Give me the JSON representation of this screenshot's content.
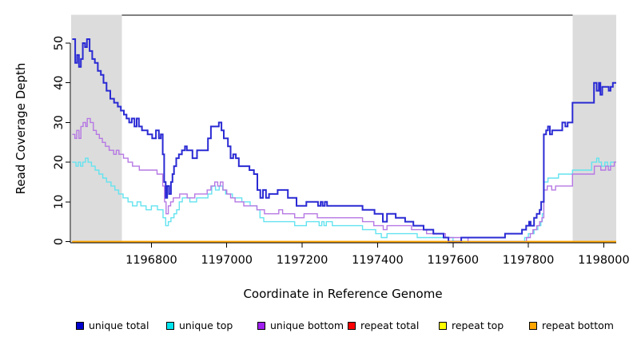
{
  "figure": {
    "background": "#FFFFFF",
    "shaded_region_color": "#DCDCDC",
    "axis_color": "#000000",
    "text_color": "#000000"
  },
  "chart_data": {
    "type": "line",
    "step_style": true,
    "title": "",
    "xlabel": "Coordinate in Reference Genome",
    "ylabel": "Read Coverage Depth",
    "grid": false,
    "legend_position": "bottom",
    "x_axis": {
      "min": 1196585,
      "max": 1198033,
      "ticks": [
        {
          "value": 1196800,
          "label": "1196800"
        },
        {
          "value": 1197000,
          "label": "1197000"
        },
        {
          "value": 1197200,
          "label": "1197200"
        },
        {
          "value": 1197400,
          "label": "1197400"
        },
        {
          "value": 1197600,
          "label": "1197600"
        },
        {
          "value": 1197800,
          "label": "1197800"
        },
        {
          "value": 1198000,
          "label": "1198000"
        }
      ]
    },
    "y_axis": {
      "min": 0,
      "max": 57,
      "ticks": [
        {
          "value": 0,
          "label": "0"
        },
        {
          "value": 10,
          "label": "10"
        },
        {
          "value": 20,
          "label": "20"
        },
        {
          "value": 30,
          "label": "30"
        },
        {
          "value": 40,
          "label": "40"
        },
        {
          "value": 50,
          "label": "50"
        }
      ]
    },
    "shaded_regions": [
      {
        "x0": 1196587,
        "x1": 1196722
      },
      {
        "x0": 1197917,
        "x1": 1198033
      }
    ],
    "draw_order": [
      "repeat total",
      "repeat top",
      "unique top",
      "unique bottom",
      "unique total",
      "repeat bottom"
    ],
    "series": [
      {
        "name": "unique total",
        "legend_color": "#0000CC",
        "stroke": "#2A2AD4",
        "width": 2,
        "points": [
          [
            1196590,
            51
          ],
          [
            1196598,
            45
          ],
          [
            1196603,
            47
          ],
          [
            1196608,
            44
          ],
          [
            1196613,
            46
          ],
          [
            1196618,
            50
          ],
          [
            1196624,
            49
          ],
          [
            1196629,
            51
          ],
          [
            1196636,
            48
          ],
          [
            1196643,
            46
          ],
          [
            1196650,
            45
          ],
          [
            1196658,
            43
          ],
          [
            1196666,
            42
          ],
          [
            1196673,
            40
          ],
          [
            1196681,
            38
          ],
          [
            1196691,
            36
          ],
          [
            1196701,
            35
          ],
          [
            1196711,
            34
          ],
          [
            1196719,
            33
          ],
          [
            1196727,
            32
          ],
          [
            1196734,
            31
          ],
          [
            1196741,
            30
          ],
          [
            1196748,
            31
          ],
          [
            1196755,
            29
          ],
          [
            1196761,
            31
          ],
          [
            1196767,
            29
          ],
          [
            1196775,
            28
          ],
          [
            1196790,
            27
          ],
          [
            1196802,
            26
          ],
          [
            1196812,
            28
          ],
          [
            1196820,
            26
          ],
          [
            1196825,
            27
          ],
          [
            1196830,
            22
          ],
          [
            1196834,
            15
          ],
          [
            1196838,
            11
          ],
          [
            1196842,
            14
          ],
          [
            1196847,
            12
          ],
          [
            1196852,
            15
          ],
          [
            1196856,
            17
          ],
          [
            1196860,
            19
          ],
          [
            1196866,
            21
          ],
          [
            1196873,
            22
          ],
          [
            1196881,
            23
          ],
          [
            1196889,
            24
          ],
          [
            1196894,
            23
          ],
          [
            1196909,
            21
          ],
          [
            1196921,
            23
          ],
          [
            1196950,
            26
          ],
          [
            1196958,
            29
          ],
          [
            1196979,
            30
          ],
          [
            1196986,
            28
          ],
          [
            1196992,
            26
          ],
          [
            1197003,
            24
          ],
          [
            1197010,
            21
          ],
          [
            1197017,
            22
          ],
          [
            1197024,
            21
          ],
          [
            1197032,
            19
          ],
          [
            1197060,
            18
          ],
          [
            1197072,
            17
          ],
          [
            1197081,
            13
          ],
          [
            1197089,
            11
          ],
          [
            1197096,
            13
          ],
          [
            1197104,
            11
          ],
          [
            1197112,
            12
          ],
          [
            1197135,
            13
          ],
          [
            1197162,
            11
          ],
          [
            1197185,
            9
          ],
          [
            1197211,
            10
          ],
          [
            1197242,
            9
          ],
          [
            1197249,
            10
          ],
          [
            1197254,
            9
          ],
          [
            1197260,
            10
          ],
          [
            1197266,
            9
          ],
          [
            1197360,
            8
          ],
          [
            1197392,
            7
          ],
          [
            1197414,
            5
          ],
          [
            1197425,
            7
          ],
          [
            1197448,
            6
          ],
          [
            1197473,
            5
          ],
          [
            1197495,
            4
          ],
          [
            1197522,
            3
          ],
          [
            1197548,
            2
          ],
          [
            1197575,
            1
          ],
          [
            1197588,
            0
          ],
          [
            1197622,
            1
          ],
          [
            1197738,
            2
          ],
          [
            1197783,
            3
          ],
          [
            1197794,
            4
          ],
          [
            1197802,
            5
          ],
          [
            1197806,
            4
          ],
          [
            1197815,
            6
          ],
          [
            1197822,
            7
          ],
          [
            1197830,
            8
          ],
          [
            1197834,
            10
          ],
          [
            1197841,
            27
          ],
          [
            1197847,
            28
          ],
          [
            1197852,
            29
          ],
          [
            1197857,
            27
          ],
          [
            1197863,
            28
          ],
          [
            1197890,
            30
          ],
          [
            1197898,
            29
          ],
          [
            1197904,
            30
          ],
          [
            1197917,
            35
          ],
          [
            1197974,
            40
          ],
          [
            1197981,
            38
          ],
          [
            1197987,
            40
          ],
          [
            1197991,
            37
          ],
          [
            1197996,
            39
          ],
          [
            1198013,
            38
          ],
          [
            1198018,
            39
          ],
          [
            1198024,
            40
          ],
          [
            1198033,
            40
          ]
        ]
      },
      {
        "name": "unique top",
        "legend_color": "#00E5EE",
        "stroke": "#63E3EF",
        "width": 1.4,
        "points": [
          [
            1196590,
            20
          ],
          [
            1196600,
            19
          ],
          [
            1196606,
            20
          ],
          [
            1196612,
            19
          ],
          [
            1196618,
            20
          ],
          [
            1196625,
            21
          ],
          [
            1196632,
            20
          ],
          [
            1196641,
            19
          ],
          [
            1196651,
            18
          ],
          [
            1196661,
            17
          ],
          [
            1196671,
            16
          ],
          [
            1196681,
            15
          ],
          [
            1196693,
            14
          ],
          [
            1196703,
            13
          ],
          [
            1196713,
            12
          ],
          [
            1196725,
            11
          ],
          [
            1196738,
            10
          ],
          [
            1196750,
            9
          ],
          [
            1196762,
            10
          ],
          [
            1196772,
            9
          ],
          [
            1196786,
            8
          ],
          [
            1196800,
            9
          ],
          [
            1196816,
            8
          ],
          [
            1196831,
            6
          ],
          [
            1196838,
            4
          ],
          [
            1196845,
            5
          ],
          [
            1196852,
            6
          ],
          [
            1196860,
            7
          ],
          [
            1196867,
            8
          ],
          [
            1196874,
            10
          ],
          [
            1196882,
            11
          ],
          [
            1196892,
            11
          ],
          [
            1196902,
            10
          ],
          [
            1196920,
            11
          ],
          [
            1196950,
            12
          ],
          [
            1196960,
            14
          ],
          [
            1196970,
            13
          ],
          [
            1196980,
            14
          ],
          [
            1196989,
            13
          ],
          [
            1196997,
            12
          ],
          [
            1197015,
            11
          ],
          [
            1197040,
            10
          ],
          [
            1197062,
            9
          ],
          [
            1197080,
            8
          ],
          [
            1197088,
            6
          ],
          [
            1197098,
            5
          ],
          [
            1197130,
            5
          ],
          [
            1197180,
            4
          ],
          [
            1197211,
            5
          ],
          [
            1197245,
            4
          ],
          [
            1197252,
            5
          ],
          [
            1197258,
            4
          ],
          [
            1197264,
            5
          ],
          [
            1197280,
            4
          ],
          [
            1197360,
            3
          ],
          [
            1197395,
            2
          ],
          [
            1197410,
            1
          ],
          [
            1197425,
            2
          ],
          [
            1197505,
            1
          ],
          [
            1197600,
            0
          ],
          [
            1197790,
            1
          ],
          [
            1197800,
            2
          ],
          [
            1197815,
            3
          ],
          [
            1197825,
            4
          ],
          [
            1197833,
            5
          ],
          [
            1197837,
            7
          ],
          [
            1197841,
            15
          ],
          [
            1197852,
            16
          ],
          [
            1197880,
            17
          ],
          [
            1197917,
            18
          ],
          [
            1197968,
            20
          ],
          [
            1197981,
            21
          ],
          [
            1197987,
            20
          ],
          [
            1197994,
            19
          ],
          [
            1198003,
            20
          ],
          [
            1198010,
            19
          ],
          [
            1198018,
            20
          ],
          [
            1198033,
            20
          ]
        ]
      },
      {
        "name": "unique bottom",
        "legend_color": "#A020F0",
        "stroke": "#B678E4",
        "width": 1.4,
        "points": [
          [
            1196590,
            27
          ],
          [
            1196597,
            26
          ],
          [
            1196602,
            28
          ],
          [
            1196608,
            26
          ],
          [
            1196613,
            29
          ],
          [
            1196619,
            30
          ],
          [
            1196626,
            29
          ],
          [
            1196630,
            31
          ],
          [
            1196638,
            30
          ],
          [
            1196646,
            28
          ],
          [
            1196654,
            27
          ],
          [
            1196662,
            26
          ],
          [
            1196670,
            25
          ],
          [
            1196678,
            24
          ],
          [
            1196688,
            23
          ],
          [
            1196700,
            22
          ],
          [
            1196707,
            23
          ],
          [
            1196714,
            22
          ],
          [
            1196726,
            21
          ],
          [
            1196738,
            20
          ],
          [
            1196750,
            19
          ],
          [
            1196768,
            18
          ],
          [
            1196790,
            18
          ],
          [
            1196815,
            17
          ],
          [
            1196830,
            14
          ],
          [
            1196835,
            10
          ],
          [
            1196839,
            7
          ],
          [
            1196845,
            9
          ],
          [
            1196851,
            10
          ],
          [
            1196858,
            11
          ],
          [
            1196875,
            12
          ],
          [
            1196895,
            11
          ],
          [
            1196915,
            12
          ],
          [
            1196948,
            13
          ],
          [
            1196958,
            14
          ],
          [
            1196968,
            15
          ],
          [
            1196976,
            14
          ],
          [
            1196983,
            15
          ],
          [
            1196990,
            13
          ],
          [
            1197000,
            12
          ],
          [
            1197010,
            11
          ],
          [
            1197022,
            10
          ],
          [
            1197045,
            9
          ],
          [
            1197080,
            8
          ],
          [
            1197100,
            7
          ],
          [
            1197138,
            8
          ],
          [
            1197148,
            7
          ],
          [
            1197180,
            6
          ],
          [
            1197205,
            7
          ],
          [
            1197240,
            6
          ],
          [
            1197360,
            5
          ],
          [
            1197390,
            4
          ],
          [
            1197415,
            3
          ],
          [
            1197425,
            4
          ],
          [
            1197490,
            3
          ],
          [
            1197530,
            2
          ],
          [
            1197580,
            1
          ],
          [
            1197640,
            0
          ],
          [
            1197795,
            1
          ],
          [
            1197805,
            2
          ],
          [
            1197812,
            3
          ],
          [
            1197822,
            4
          ],
          [
            1197830,
            5
          ],
          [
            1197836,
            6
          ],
          [
            1197841,
            13
          ],
          [
            1197850,
            14
          ],
          [
            1197862,
            13
          ],
          [
            1197872,
            14
          ],
          [
            1197917,
            17
          ],
          [
            1197975,
            19
          ],
          [
            1197992,
            18
          ],
          [
            1198005,
            19
          ],
          [
            1198012,
            18
          ],
          [
            1198018,
            19
          ],
          [
            1198028,
            20
          ],
          [
            1198033,
            20
          ]
        ]
      },
      {
        "name": "repeat total",
        "legend_color": "#FF0000",
        "stroke": "#FF0000",
        "width": 1.4,
        "points": [
          [
            1196590,
            0
          ],
          [
            1198033,
            0
          ]
        ]
      },
      {
        "name": "repeat top",
        "legend_color": "#FFFF00",
        "stroke": "#FFFF00",
        "width": 1.4,
        "points": [
          [
            1196590,
            0
          ],
          [
            1198033,
            0
          ]
        ]
      },
      {
        "name": "repeat bottom",
        "legend_color": "#FFA500",
        "stroke": "#FFA500",
        "width": 1.6,
        "points": [
          [
            1196590,
            0
          ],
          [
            1198033,
            0
          ]
        ]
      }
    ]
  }
}
